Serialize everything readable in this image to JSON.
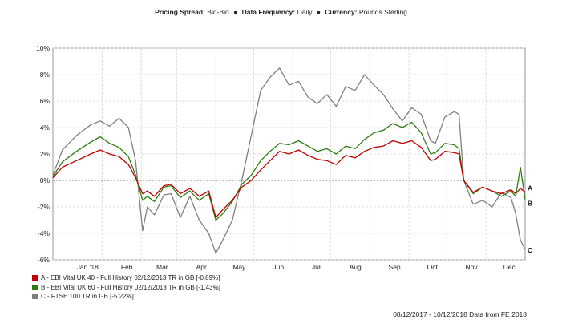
{
  "header": {
    "pricing_label": "Pricing Spread:",
    "pricing_value": "Bid-Bid",
    "frequency_label": "Data Frequency:",
    "frequency_value": "Daily",
    "currency_label": "Currency:",
    "currency_value": "Pounds Sterling",
    "separator": "●"
  },
  "footer": {
    "text": "08/12/2017 - 10/12/2018 Data from FE 2018"
  },
  "chart_data": {
    "type": "line",
    "grid": true,
    "ylim": [
      -6,
      10
    ],
    "yticks": [
      -6,
      -4,
      -2,
      0,
      2,
      4,
      6,
      8,
      10
    ],
    "ytick_labels": [
      "-6%",
      "-4%",
      "-2%",
      "0%",
      "2%",
      "4%",
      "6%",
      "8%",
      "10%"
    ],
    "xticks": [
      {
        "label": "Jan '18",
        "pos": 0.104
      },
      {
        "label": "Feb",
        "pos": 0.187
      },
      {
        "label": "Mar",
        "pos": 0.262
      },
      {
        "label": "Apr",
        "pos": 0.345
      },
      {
        "label": "May",
        "pos": 0.425
      },
      {
        "label": "Jun",
        "pos": 0.508
      },
      {
        "label": "Jul",
        "pos": 0.588
      },
      {
        "label": "Aug",
        "pos": 0.671
      },
      {
        "label": "Sep",
        "pos": 0.754
      },
      {
        "label": "Oct",
        "pos": 0.834
      },
      {
        "label": "Nov",
        "pos": 0.917
      },
      {
        "label": "Dec",
        "pos": 0.997
      }
    ],
    "x": [
      0,
      0.02,
      0.05,
      0.08,
      0.1,
      0.12,
      0.14,
      0.16,
      0.175,
      0.19,
      0.2,
      0.215,
      0.235,
      0.25,
      0.27,
      0.29,
      0.31,
      0.33,
      0.345,
      0.36,
      0.38,
      0.4,
      0.42,
      0.44,
      0.46,
      0.48,
      0.5,
      0.52,
      0.54,
      0.56,
      0.58,
      0.6,
      0.62,
      0.64,
      0.66,
      0.68,
      0.7,
      0.72,
      0.74,
      0.76,
      0.78,
      0.8,
      0.81,
      0.83,
      0.85,
      0.86,
      0.87,
      0.89,
      0.91,
      0.93,
      0.95,
      0.97,
      0.98,
      0.99,
      1.0
    ],
    "series": [
      {
        "name": "A - EBI Vital UK 40 - Full History 02/12/2013 TR in GB [-0.89%]",
        "end_label": "A",
        "color": "#c00000",
        "values": [
          0.2,
          1.0,
          1.5,
          2.0,
          2.3,
          2.0,
          1.8,
          1.2,
          0.2,
          -1.0,
          -0.8,
          -1.2,
          -0.4,
          -0.3,
          -1.0,
          -0.6,
          -1.2,
          -0.8,
          -2.8,
          -2.2,
          -1.5,
          -0.5,
          0.0,
          0.8,
          1.5,
          2.2,
          2.0,
          2.3,
          1.9,
          1.6,
          1.5,
          1.2,
          1.9,
          1.7,
          2.2,
          2.5,
          2.6,
          3.0,
          2.8,
          3.0,
          2.5,
          1.5,
          1.6,
          2.2,
          2.1,
          2.0,
          0.0,
          -0.9,
          -0.5,
          -0.8,
          -1.0,
          -0.7,
          -1.0,
          -0.6,
          -0.89
        ]
      },
      {
        "name": "B - EBI Vital UK 60 - Full History 02/12/2013 TR in GB [-1.43%]",
        "end_label": "B",
        "color": "#2e7d10",
        "values": [
          0.3,
          1.4,
          2.2,
          2.9,
          3.3,
          2.8,
          2.5,
          1.8,
          0.4,
          -1.5,
          -1.2,
          -1.6,
          -0.5,
          -0.4,
          -1.3,
          -0.8,
          -1.5,
          -1.0,
          -3.0,
          -2.5,
          -1.6,
          -0.3,
          0.4,
          1.5,
          2.2,
          2.8,
          2.7,
          3.0,
          2.6,
          2.2,
          2.4,
          2.0,
          2.6,
          2.4,
          3.1,
          3.6,
          3.8,
          4.3,
          4.0,
          4.4,
          3.6,
          2.0,
          2.1,
          2.8,
          2.7,
          2.4,
          0.0,
          -1.0,
          -0.5,
          -0.8,
          -1.2,
          -0.8,
          -1.2,
          1.0,
          -1.43
        ]
      },
      {
        "name": "C - FTSE 100 TR in GB [-5.22%]",
        "end_label": "C",
        "color": "#808080",
        "values": [
          0.4,
          2.3,
          3.4,
          4.2,
          4.5,
          4.1,
          4.7,
          4.0,
          1.5,
          -3.8,
          -2.0,
          -2.6,
          -1.1,
          -1.0,
          -2.8,
          -1.2,
          -3.0,
          -4.0,
          -5.5,
          -4.5,
          -3.0,
          0.0,
          3.4,
          6.8,
          7.8,
          8.5,
          7.2,
          7.5,
          6.3,
          5.8,
          6.5,
          5.6,
          7.1,
          6.8,
          8.0,
          7.2,
          6.5,
          5.4,
          4.5,
          5.5,
          5.0,
          3.0,
          2.8,
          4.8,
          5.2,
          5.0,
          0.0,
          -1.8,
          -1.5,
          -2.0,
          -0.9,
          -1.3,
          -2.5,
          -4.5,
          -5.22
        ]
      }
    ]
  }
}
